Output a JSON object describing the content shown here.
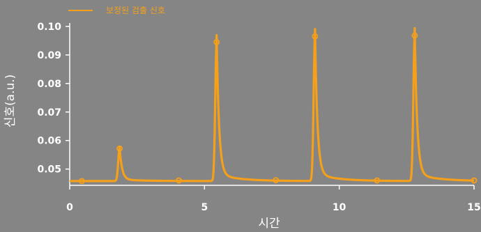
{
  "chart_data": {
    "type": "line",
    "title": "",
    "xlabel": "시간",
    "ylabel": "신호(a.u.)",
    "xlim": [
      0,
      15
    ],
    "ylim": [
      0.0443,
      0.1012
    ],
    "xticks": [
      0,
      5,
      10,
      15
    ],
    "xtick_labels": [
      "0",
      "5",
      "10",
      "15"
    ],
    "yticks": [
      0.05,
      0.06,
      0.07,
      0.08,
      0.09,
      0.1
    ],
    "ytick_labels": [
      "0.05",
      "0.06",
      "0.07",
      "0.08",
      "0.09",
      "0.10"
    ],
    "grid": false,
    "legend_position": "top-left",
    "series": [
      {
        "name": "보정된 검출 신호",
        "color": "#F5A01A",
        "baseline": 0.0458,
        "peaks": [
          {
            "x": 1.85,
            "y": 0.0572
          },
          {
            "x": 5.45,
            "y": 0.0945
          },
          {
            "x": 9.1,
            "y": 0.0965
          },
          {
            "x": 12.8,
            "y": 0.0968
          }
        ],
        "markers": [
          {
            "x": 0.45,
            "y": 0.0458
          },
          {
            "x": 1.85,
            "y": 0.0572
          },
          {
            "x": 4.05,
            "y": 0.046
          },
          {
            "x": 5.45,
            "y": 0.0945
          },
          {
            "x": 7.65,
            "y": 0.0461
          },
          {
            "x": 9.1,
            "y": 0.0965
          },
          {
            "x": 11.4,
            "y": 0.046
          },
          {
            "x": 12.8,
            "y": 0.0968
          },
          {
            "x": 15.0,
            "y": 0.046
          }
        ]
      }
    ]
  }
}
